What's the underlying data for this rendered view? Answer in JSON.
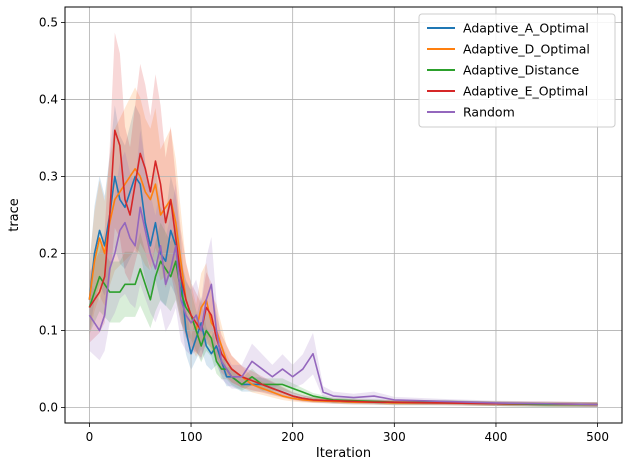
{
  "chart_data": {
    "type": "line",
    "title": "",
    "xlabel": "Iteration",
    "ylabel": "trace",
    "xlim": [
      -24,
      524
    ],
    "ylim": [
      -0.02,
      0.52
    ],
    "xticks": [
      0,
      100,
      200,
      300,
      400,
      500
    ],
    "yticks": [
      0.0,
      0.1,
      0.2,
      0.3,
      0.4,
      0.5
    ],
    "xtick_labels": [
      "0",
      "100",
      "200",
      "300",
      "400",
      "500"
    ],
    "ytick_labels": [
      "0.0",
      "0.1",
      "0.2",
      "0.3",
      "0.4",
      "0.5"
    ],
    "grid": true,
    "legend_position": "top-right",
    "band": "shaded spread around each mean line",
    "series": [
      {
        "name": "Adaptive_A_Optimal",
        "color": "#1f77b4",
        "x": [
          0,
          5,
          10,
          15,
          20,
          25,
          30,
          35,
          40,
          45,
          50,
          55,
          60,
          65,
          70,
          75,
          80,
          85,
          90,
          95,
          100,
          105,
          110,
          115,
          120,
          125,
          130,
          135,
          140,
          150,
          160,
          170,
          180,
          190,
          200,
          210,
          220,
          240,
          260,
          280,
          300,
          350,
          400,
          450,
          500
        ],
        "y": [
          0.14,
          0.2,
          0.23,
          0.21,
          0.25,
          0.3,
          0.27,
          0.26,
          0.28,
          0.3,
          0.29,
          0.24,
          0.21,
          0.24,
          0.2,
          0.19,
          0.23,
          0.21,
          0.17,
          0.1,
          0.07,
          0.09,
          0.11,
          0.08,
          0.07,
          0.08,
          0.06,
          0.04,
          0.04,
          0.03,
          0.03,
          0.03,
          0.025,
          0.02,
          0.015,
          0.012,
          0.01,
          0.008,
          0.007,
          0.007,
          0.006,
          0.006,
          0.005,
          0.004,
          0.004
        ],
        "band": [
          0.09,
          0.19
        ]
      },
      {
        "name": "Adaptive_D_Optimal",
        "color": "#ff7f0e",
        "x": [
          0,
          5,
          10,
          15,
          20,
          25,
          30,
          35,
          40,
          45,
          50,
          55,
          60,
          65,
          70,
          75,
          80,
          85,
          90,
          95,
          100,
          105,
          110,
          115,
          120,
          125,
          130,
          135,
          140,
          150,
          160,
          170,
          180,
          190,
          200,
          210,
          220,
          240,
          260,
          280,
          300,
          350,
          400,
          450,
          500
        ],
        "y": [
          0.14,
          0.19,
          0.22,
          0.2,
          0.24,
          0.27,
          0.28,
          0.29,
          0.3,
          0.31,
          0.3,
          0.28,
          0.27,
          0.29,
          0.25,
          0.26,
          0.27,
          0.24,
          0.19,
          0.14,
          0.12,
          0.1,
          0.13,
          0.14,
          0.11,
          0.1,
          0.08,
          0.06,
          0.05,
          0.04,
          0.03,
          0.025,
          0.02,
          0.015,
          0.012,
          0.01,
          0.009,
          0.008,
          0.007,
          0.007,
          0.006,
          0.006,
          0.005,
          0.004,
          0.004
        ],
        "band": [
          0.11,
          0.2
        ]
      },
      {
        "name": "Adaptive_Distance",
        "color": "#2ca02c",
        "x": [
          0,
          5,
          10,
          15,
          20,
          25,
          30,
          35,
          40,
          45,
          50,
          55,
          60,
          65,
          70,
          75,
          80,
          85,
          90,
          95,
          100,
          105,
          110,
          115,
          120,
          125,
          130,
          135,
          140,
          150,
          160,
          170,
          180,
          190,
          200,
          210,
          220,
          240,
          260,
          280,
          300,
          350,
          400,
          450,
          500
        ],
        "y": [
          0.13,
          0.15,
          0.17,
          0.16,
          0.15,
          0.15,
          0.15,
          0.16,
          0.16,
          0.16,
          0.18,
          0.16,
          0.14,
          0.17,
          0.19,
          0.18,
          0.17,
          0.19,
          0.15,
          0.13,
          0.12,
          0.1,
          0.08,
          0.1,
          0.09,
          0.06,
          0.05,
          0.05,
          0.04,
          0.03,
          0.04,
          0.03,
          0.03,
          0.03,
          0.025,
          0.02,
          0.015,
          0.01,
          0.009,
          0.008,
          0.007,
          0.007,
          0.005,
          0.004,
          0.004
        ],
        "band": [
          0.08,
          0.16
        ]
      },
      {
        "name": "Adaptive_E_Optimal",
        "color": "#d62728",
        "x": [
          0,
          5,
          10,
          15,
          20,
          25,
          30,
          35,
          40,
          45,
          50,
          55,
          60,
          65,
          70,
          75,
          80,
          85,
          90,
          95,
          100,
          105,
          110,
          115,
          120,
          125,
          130,
          135,
          140,
          150,
          160,
          170,
          180,
          190,
          200,
          210,
          220,
          240,
          260,
          280,
          300,
          350,
          400,
          450,
          500
        ],
        "y": [
          0.13,
          0.14,
          0.15,
          0.17,
          0.25,
          0.36,
          0.34,
          0.27,
          0.25,
          0.29,
          0.33,
          0.31,
          0.28,
          0.32,
          0.29,
          0.24,
          0.27,
          0.22,
          0.17,
          0.14,
          0.12,
          0.11,
          0.1,
          0.13,
          0.12,
          0.09,
          0.07,
          0.06,
          0.05,
          0.04,
          0.035,
          0.03,
          0.025,
          0.02,
          0.015,
          0.012,
          0.01,
          0.009,
          0.008,
          0.007,
          0.007,
          0.006,
          0.005,
          0.005,
          0.004
        ],
        "band": [
          0.1,
          0.22
        ]
      },
      {
        "name": "Random",
        "color": "#9467bd",
        "x": [
          0,
          5,
          10,
          15,
          20,
          25,
          30,
          35,
          40,
          45,
          50,
          55,
          60,
          65,
          70,
          75,
          80,
          85,
          90,
          95,
          100,
          105,
          110,
          115,
          120,
          125,
          130,
          135,
          140,
          150,
          160,
          170,
          180,
          190,
          200,
          210,
          220,
          230,
          240,
          260,
          280,
          300,
          350,
          400,
          450,
          500
        ],
        "y": [
          0.12,
          0.11,
          0.1,
          0.12,
          0.18,
          0.2,
          0.23,
          0.24,
          0.22,
          0.21,
          0.26,
          0.23,
          0.2,
          0.18,
          0.21,
          0.16,
          0.18,
          0.21,
          0.14,
          0.12,
          0.11,
          0.12,
          0.1,
          0.14,
          0.16,
          0.1,
          0.06,
          0.05,
          0.04,
          0.04,
          0.06,
          0.05,
          0.04,
          0.05,
          0.04,
          0.05,
          0.07,
          0.02,
          0.015,
          0.013,
          0.015,
          0.01,
          0.008,
          0.006,
          0.005,
          0.004
        ],
        "band": [
          0.11,
          0.24
        ]
      }
    ]
  }
}
